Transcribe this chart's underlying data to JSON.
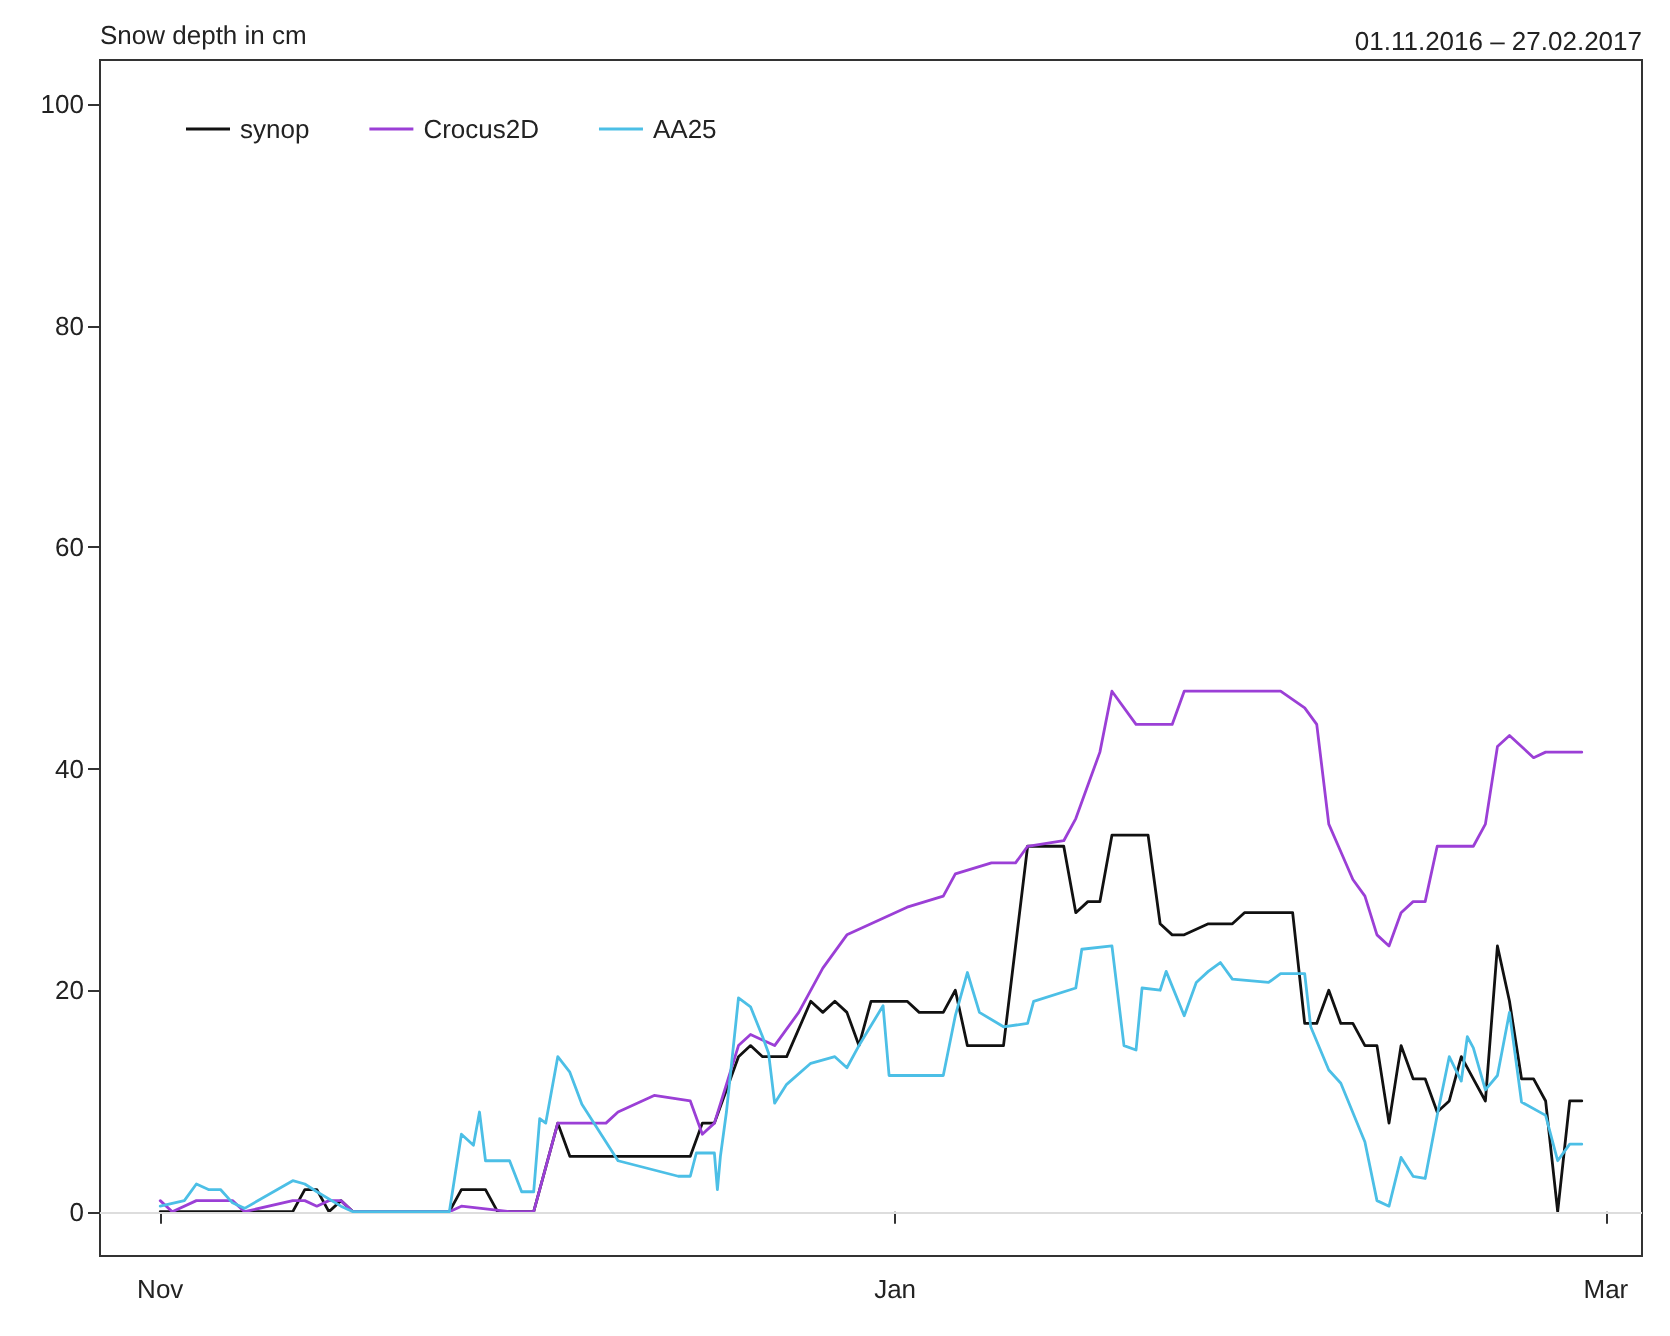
{
  "chart_data": {
    "type": "line",
    "ylabel": "Snow depth in cm",
    "annotations": [
      "01.11.2016 – 27.02.2017"
    ],
    "xlim": [
      "2016-10-27",
      "2017-03-04"
    ],
    "xticks": [
      {
        "value": "2016-11-01",
        "label": "Nov"
      },
      {
        "value": "2017-01-01",
        "label": "Jan"
      },
      {
        "value": "2017-03-01",
        "label": "Mar"
      }
    ],
    "ylim": [
      -4,
      104
    ],
    "yticks": [
      0,
      20,
      40,
      60,
      80,
      100
    ],
    "grid": false,
    "legend": "top left",
    "marker": "none",
    "line_style": "solid",
    "ref_lines": [
      {
        "axis": "y",
        "value": 0,
        "color": "#dddddd"
      }
    ],
    "series": [
      {
        "name": "synop",
        "color": "#111111",
        "x": [
          "2016-11-01",
          "2016-11-12",
          "2016-11-13",
          "2016-11-14",
          "2016-11-15",
          "2016-11-16",
          "2016-11-17",
          "2016-11-25",
          "2016-11-26",
          "2016-11-28",
          "2016-11-29",
          "2016-12-02",
          "2016-12-04",
          "2016-12-05",
          "2016-12-15",
          "2016-12-16",
          "2016-12-17",
          "2016-12-19",
          "2016-12-20",
          "2016-12-21",
          "2016-12-23",
          "2016-12-25",
          "2016-12-26",
          "2016-12-27",
          "2016-12-28",
          "2016-12-29",
          "2016-12-30",
          "2017-01-02",
          "2017-01-03",
          "2017-01-05",
          "2017-01-06",
          "2017-01-07",
          "2017-01-10",
          "2017-01-12",
          "2017-01-15",
          "2017-01-16",
          "2017-01-17",
          "2017-01-18",
          "2017-01-19",
          "2017-01-22",
          "2017-01-23",
          "2017-01-24",
          "2017-01-25",
          "2017-01-27",
          "2017-01-29",
          "2017-01-30",
          "2017-02-03",
          "2017-02-04",
          "2017-02-05",
          "2017-02-06",
          "2017-02-07",
          "2017-02-08",
          "2017-02-09",
          "2017-02-10",
          "2017-02-11",
          "2017-02-12",
          "2017-02-13",
          "2017-02-14",
          "2017-02-15",
          "2017-02-16",
          "2017-02-17",
          "2017-02-18",
          "2017-02-19",
          "2017-02-20",
          "2017-02-21",
          "2017-02-22",
          "2017-02-23",
          "2017-02-24",
          "2017-02-25",
          "2017-02-26",
          "2017-02-27"
        ],
        "values": [
          0,
          0,
          2,
          2,
          0,
          1,
          0,
          0,
          2,
          2,
          0,
          0,
          8,
          5,
          5,
          8,
          8,
          14,
          15,
          14,
          14,
          19,
          18,
          19,
          18,
          15,
          19,
          19,
          18,
          18,
          20,
          15,
          15,
          33,
          33,
          27,
          28,
          28,
          34,
          34,
          26,
          25,
          25,
          26,
          26,
          27,
          27,
          17,
          17,
          20,
          17,
          17,
          15,
          15,
          8,
          15,
          12,
          12,
          9,
          10,
          14,
          12,
          10,
          24,
          19,
          12,
          12,
          10,
          0,
          10,
          10
        ]
      },
      {
        "name": "Crocus2D",
        "color": "#9b3fd6",
        "x": [
          "2016-11-01",
          "2016-11-02",
          "2016-11-04",
          "2016-11-07",
          "2016-11-08",
          "2016-11-12",
          "2016-11-13",
          "2016-11-14",
          "2016-11-15",
          "2016-11-16",
          "2016-11-17",
          "2016-11-25",
          "2016-11-26",
          "2016-11-30",
          "2016-12-02",
          "2016-12-03",
          "2016-12-04",
          "2016-12-08",
          "2016-12-09",
          "2016-12-12",
          "2016-12-15",
          "2016-12-16",
          "2016-12-17",
          "2016-12-19",
          "2016-12-20",
          "2016-12-22",
          "2016-12-24",
          "2016-12-26",
          "2016-12-28",
          "2016-12-30",
          "2017-01-02",
          "2017-01-05",
          "2017-01-06",
          "2017-01-09",
          "2017-01-11",
          "2017-01-12",
          "2017-01-15",
          "2017-01-16",
          "2017-01-17",
          "2017-01-18",
          "2017-01-19",
          "2017-01-21",
          "2017-01-24",
          "2017-01-25",
          "2017-01-30",
          "2017-02-02",
          "2017-02-04",
          "2017-02-05",
          "2017-02-06",
          "2017-02-07",
          "2017-02-08",
          "2017-02-09",
          "2017-02-10",
          "2017-02-11",
          "2017-02-12",
          "2017-02-13",
          "2017-02-14",
          "2017-02-15",
          "2017-02-18",
          "2017-02-19",
          "2017-02-20",
          "2017-02-21",
          "2017-02-23",
          "2017-02-24",
          "2017-02-27"
        ],
        "values": [
          1,
          0,
          1,
          1,
          0,
          1,
          1,
          0.5,
          1,
          1,
          0,
          0,
          0.5,
          0,
          0,
          4,
          8,
          8,
          9,
          10.5,
          10,
          7,
          8,
          15,
          16,
          15,
          18,
          22,
          25,
          26,
          27.5,
          28.5,
          30.5,
          31.5,
          31.5,
          33,
          33.5,
          35.5,
          38.5,
          41.5,
          47,
          44,
          44,
          47,
          47,
          47,
          45.5,
          44,
          35,
          32.5,
          30,
          28.5,
          25,
          24,
          27,
          28,
          28,
          33,
          33,
          35,
          42,
          43,
          41,
          41.5,
          41.5
        ]
      },
      {
        "name": "AA25",
        "color": "#4cbfe6",
        "x": [
          "2016-11-01",
          "2016-11-03",
          "2016-11-04",
          "2016-11-05",
          "2016-11-06",
          "2016-11-07",
          "2016-11-08",
          "2016-11-12",
          "2016-11-13",
          "2016-11-14",
          "2016-11-16",
          "2016-11-17",
          "2016-11-25",
          "2016-11-26",
          "2016-11-27",
          "2016-11-27T12:00",
          "2016-11-28",
          "2016-11-30",
          "2016-12-01",
          "2016-12-02",
          "2016-12-02T12:00",
          "2016-12-03",
          "2016-12-04",
          "2016-12-05",
          "2016-12-06",
          "2016-12-09",
          "2016-12-14",
          "2016-12-15",
          "2016-12-15T12:00",
          "2016-12-17",
          "2016-12-17T06:00",
          "2016-12-17T12:00",
          "2016-12-18",
          "2016-12-19",
          "2016-12-20",
          "2016-12-21",
          "2016-12-21T12:00",
          "2016-12-22",
          "2016-12-23",
          "2016-12-25",
          "2016-12-27",
          "2016-12-28",
          "2016-12-29",
          "2016-12-31",
          "2016-12-31T12:00",
          "2017-01-05",
          "2017-01-06",
          "2017-01-07",
          "2017-01-08",
          "2017-01-10",
          "2017-01-12",
          "2017-01-12T12:00",
          "2017-01-16",
          "2017-01-16T12:00",
          "2017-01-19",
          "2017-01-20",
          "2017-01-21",
          "2017-01-21T12:00",
          "2017-01-23",
          "2017-01-23T12:00",
          "2017-01-25",
          "2017-01-26",
          "2017-01-27",
          "2017-01-28",
          "2017-01-29",
          "2017-02-01",
          "2017-02-02",
          "2017-02-04",
          "2017-02-04T12:00",
          "2017-02-06",
          "2017-02-07",
          "2017-02-09",
          "2017-02-10",
          "2017-02-11",
          "2017-02-12",
          "2017-02-13",
          "2017-02-14",
          "2017-02-15",
          "2017-02-16",
          "2017-02-17",
          "2017-02-17T12:00",
          "2017-02-18",
          "2017-02-19",
          "2017-02-20",
          "2017-02-21",
          "2017-02-22",
          "2017-02-24",
          "2017-02-25",
          "2017-02-26",
          "2017-02-27"
        ],
        "values": [
          0.5,
          1,
          2.5,
          2,
          2,
          0.8,
          0.3,
          2.8,
          2.5,
          1.8,
          0.5,
          0,
          0,
          7,
          6,
          9,
          4.6,
          4.6,
          1.8,
          1.8,
          8.4,
          8,
          14,
          12.6,
          9.7,
          4.6,
          3.2,
          3.2,
          5.3,
          5.3,
          2,
          5,
          9,
          19.3,
          18.5,
          15.8,
          14.3,
          9.8,
          11.5,
          13.4,
          14,
          13,
          15,
          18.6,
          12.3,
          12.3,
          17.7,
          21.6,
          18,
          16.7,
          17,
          19,
          20.2,
          23.7,
          24,
          15,
          14.6,
          20.2,
          20,
          21.7,
          17.7,
          20.7,
          21.7,
          22.5,
          21,
          20.7,
          21.5,
          21.5,
          16.7,
          12.8,
          11.6,
          6.3,
          1,
          0.5,
          4.9,
          3.2,
          3,
          8.7,
          14,
          11.8,
          15.8,
          14.8,
          11,
          12.3,
          18,
          9.9,
          8.7,
          4.6,
          6.1,
          6.1
        ]
      }
    ]
  }
}
